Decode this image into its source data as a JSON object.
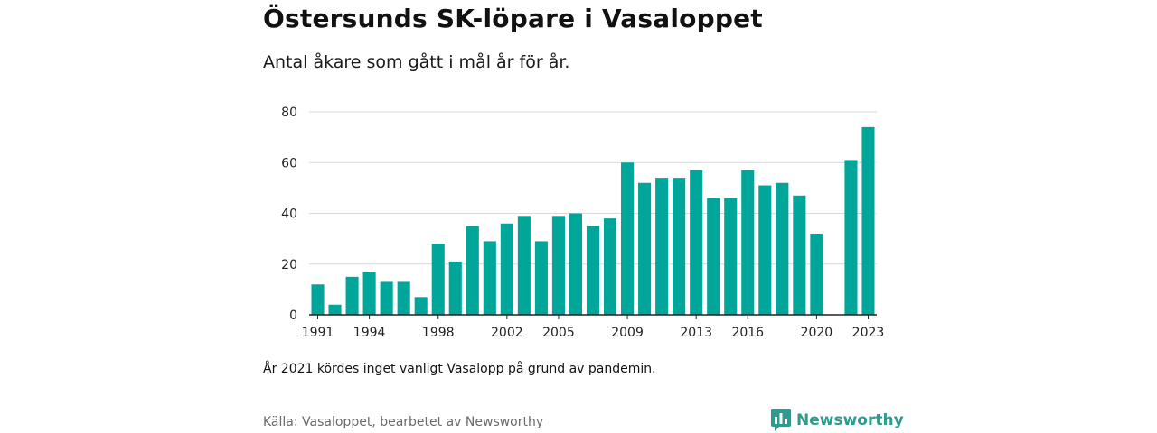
{
  "header": {
    "title": "Östersunds SK-löpare i Vasaloppet",
    "subtitle": "Antal åkare som gått i mål år för år."
  },
  "footer": {
    "note": "År 2021 kördes inget vanligt Vasalopp på grund av pandemin.",
    "source": "Källa: Vasaloppet, bearbetet av Newsworthy",
    "brand": "Newsworthy"
  },
  "colors": {
    "bar": "#00a699",
    "grid": "#d9d9d9",
    "axis": "#222222",
    "brand": "#2f9a8e"
  },
  "icons": {
    "brand_logo": "bar-chart-speech-bubble-icon"
  },
  "chart_data": {
    "type": "bar",
    "title": "Östersunds SK-löpare i Vasaloppet",
    "subtitle": "Antal åkare som gått i mål år för år.",
    "xlabel": "",
    "ylabel": "",
    "ylim": [
      0,
      80
    ],
    "yticks": [
      0,
      20,
      40,
      60,
      80
    ],
    "xtick_labels": [
      "1991",
      "1994",
      "1998",
      "2002",
      "2005",
      "2009",
      "2013",
      "2016",
      "2020",
      "2023"
    ],
    "grid": true,
    "categories": [
      1991,
      1992,
      1993,
      1994,
      1995,
      1996,
      1997,
      1998,
      1999,
      2000,
      2001,
      2002,
      2003,
      2004,
      2005,
      2006,
      2007,
      2008,
      2009,
      2010,
      2011,
      2012,
      2013,
      2014,
      2015,
      2016,
      2017,
      2018,
      2019,
      2020,
      2021,
      2022,
      2023
    ],
    "values": [
      12,
      4,
      15,
      17,
      13,
      13,
      7,
      28,
      21,
      35,
      29,
      36,
      39,
      29,
      39,
      40,
      35,
      38,
      60,
      52,
      54,
      54,
      57,
      46,
      46,
      57,
      51,
      52,
      47,
      32,
      null,
      61,
      74
    ]
  }
}
